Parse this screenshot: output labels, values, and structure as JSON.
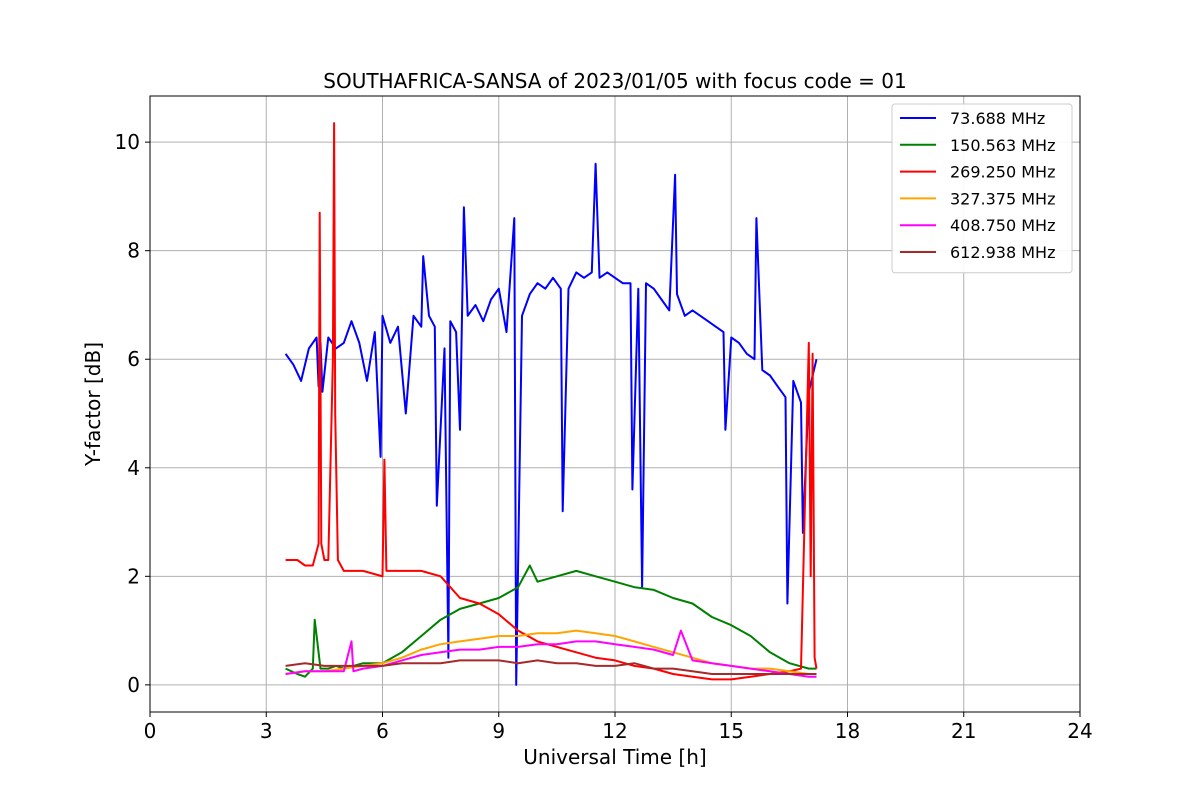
{
  "chart_data": {
    "type": "line",
    "title": "SOUTHAFRICA-SANSA of 2023/01/05 with focus code = 01",
    "xlabel": "Universal Time [h]",
    "ylabel": "Y-factor [dB]",
    "xlim": [
      0,
      24
    ],
    "ylim": [
      -0.5,
      10.85
    ],
    "xticks": [
      0,
      3,
      6,
      9,
      12,
      15,
      18,
      21,
      24
    ],
    "yticks": [
      0,
      2,
      4,
      6,
      8,
      10
    ],
    "grid": true,
    "legend_position": "top-right",
    "series": [
      {
        "name": " 73.688 MHz",
        "color": "#0000ff",
        "x": [
          3.5,
          3.7,
          3.9,
          4.1,
          4.3,
          4.35,
          4.4,
          4.45,
          4.6,
          4.8,
          5.0,
          5.2,
          5.4,
          5.6,
          5.8,
          5.95,
          6.0,
          6.2,
          6.4,
          6.6,
          6.8,
          7.0,
          7.05,
          7.2,
          7.35,
          7.4,
          7.6,
          7.7,
          7.75,
          7.9,
          8.0,
          8.1,
          8.2,
          8.4,
          8.6,
          8.8,
          9.0,
          9.2,
          9.4,
          9.45,
          9.6,
          9.8,
          10.0,
          10.2,
          10.4,
          10.6,
          10.65,
          10.8,
          11.0,
          11.2,
          11.4,
          11.5,
          11.6,
          11.8,
          12.0,
          12.2,
          12.4,
          12.45,
          12.6,
          12.7,
          12.8,
          13.0,
          13.2,
          13.4,
          13.55,
          13.6,
          13.8,
          14.0,
          14.2,
          14.4,
          14.6,
          14.8,
          14.85,
          15.0,
          15.2,
          15.4,
          15.6,
          15.65,
          15.8,
          16.0,
          16.2,
          16.4,
          16.45,
          16.6,
          16.8,
          16.85,
          17.0,
          17.2
        ],
        "values": [
          6.1,
          5.9,
          5.6,
          6.2,
          6.4,
          5.5,
          6.3,
          5.4,
          6.4,
          6.2,
          6.3,
          6.7,
          6.3,
          5.6,
          6.5,
          4.2,
          6.8,
          6.3,
          6.6,
          5.0,
          6.8,
          6.6,
          7.9,
          6.8,
          6.6,
          3.3,
          6.2,
          0.5,
          6.7,
          6.5,
          4.7,
          8.8,
          6.8,
          7.0,
          6.7,
          7.1,
          7.3,
          6.5,
          8.6,
          0.0,
          6.8,
          7.2,
          7.4,
          7.3,
          7.5,
          7.3,
          3.2,
          7.3,
          7.6,
          7.5,
          7.6,
          9.6,
          7.5,
          7.6,
          7.5,
          7.4,
          7.4,
          3.6,
          7.3,
          1.8,
          7.4,
          7.3,
          7.1,
          6.9,
          9.4,
          7.2,
          6.8,
          6.9,
          6.8,
          6.7,
          6.6,
          6.5,
          4.7,
          6.4,
          6.3,
          6.1,
          6.0,
          8.6,
          5.8,
          5.7,
          5.5,
          5.3,
          1.5,
          5.6,
          5.2,
          2.8,
          5.4,
          6.0
        ]
      },
      {
        "name": "150.563 MHz",
        "color": "#008000",
        "x": [
          3.5,
          3.8,
          4.0,
          4.2,
          4.25,
          4.4,
          4.6,
          4.8,
          5.0,
          5.5,
          6.0,
          6.5,
          7.0,
          7.5,
          8.0,
          8.5,
          9.0,
          9.5,
          9.8,
          10.0,
          10.5,
          11.0,
          11.5,
          12.0,
          12.5,
          13.0,
          13.5,
          14.0,
          14.5,
          15.0,
          15.5,
          16.0,
          16.5,
          17.0,
          17.2
        ],
        "values": [
          0.3,
          0.2,
          0.15,
          0.3,
          1.2,
          0.3,
          0.3,
          0.35,
          0.3,
          0.4,
          0.4,
          0.6,
          0.9,
          1.2,
          1.4,
          1.5,
          1.6,
          1.8,
          2.2,
          1.9,
          2.0,
          2.1,
          2.0,
          1.9,
          1.8,
          1.75,
          1.6,
          1.5,
          1.25,
          1.1,
          0.9,
          0.6,
          0.4,
          0.3,
          0.3
        ]
      },
      {
        "name": "269.250 MHz",
        "color": "#ff0000",
        "x": [
          3.5,
          3.8,
          4.0,
          4.2,
          4.35,
          4.38,
          4.42,
          4.5,
          4.6,
          4.72,
          4.75,
          4.78,
          4.85,
          5.0,
          5.5,
          6.0,
          6.05,
          6.1,
          6.5,
          7.0,
          7.5,
          8.0,
          8.5,
          9.0,
          9.5,
          10.0,
          10.5,
          11.0,
          11.5,
          12.0,
          12.5,
          13.0,
          13.5,
          14.0,
          14.5,
          15.0,
          15.5,
          16.0,
          16.5,
          16.8,
          17.0,
          17.05,
          17.1,
          17.15,
          17.2
        ],
        "values": [
          2.3,
          2.3,
          2.2,
          2.2,
          2.6,
          8.7,
          2.6,
          2.3,
          2.3,
          6.0,
          10.35,
          5.0,
          2.3,
          2.1,
          2.1,
          2.0,
          4.15,
          2.1,
          2.1,
          2.1,
          2.0,
          1.6,
          1.5,
          1.3,
          1.0,
          0.8,
          0.7,
          0.6,
          0.5,
          0.45,
          0.35,
          0.3,
          0.2,
          0.15,
          0.1,
          0.1,
          0.15,
          0.2,
          0.25,
          0.3,
          6.3,
          2.0,
          6.1,
          0.5,
          0.3
        ]
      },
      {
        "name": "327.375 MHz",
        "color": "#ffa500",
        "x": [
          3.5,
          4.0,
          4.5,
          5.0,
          5.5,
          6.0,
          6.5,
          7.0,
          7.5,
          8.0,
          8.5,
          9.0,
          9.5,
          10.0,
          10.5,
          11.0,
          11.5,
          12.0,
          12.5,
          13.0,
          13.5,
          14.0,
          14.5,
          15.0,
          15.5,
          16.0,
          16.5,
          17.0,
          17.2
        ],
        "values": [
          0.2,
          0.25,
          0.25,
          0.3,
          0.35,
          0.4,
          0.5,
          0.65,
          0.75,
          0.8,
          0.85,
          0.9,
          0.9,
          0.95,
          0.95,
          1.0,
          0.95,
          0.9,
          0.8,
          0.7,
          0.6,
          0.5,
          0.4,
          0.35,
          0.3,
          0.3,
          0.25,
          0.2,
          0.2
        ]
      },
      {
        "name": "408.750 MHz",
        "color": "#ff00ff",
        "x": [
          3.5,
          4.0,
          4.5,
          5.0,
          5.2,
          5.25,
          5.5,
          6.0,
          6.5,
          7.0,
          7.5,
          8.0,
          8.5,
          9.0,
          9.5,
          10.0,
          10.5,
          11.0,
          11.5,
          12.0,
          12.5,
          13.0,
          13.5,
          13.7,
          14.0,
          14.5,
          15.0,
          15.5,
          16.0,
          16.5,
          17.0,
          17.2
        ],
        "values": [
          0.2,
          0.25,
          0.25,
          0.25,
          0.8,
          0.25,
          0.3,
          0.35,
          0.45,
          0.55,
          0.6,
          0.65,
          0.65,
          0.7,
          0.7,
          0.75,
          0.75,
          0.8,
          0.8,
          0.75,
          0.7,
          0.65,
          0.55,
          1.0,
          0.45,
          0.4,
          0.35,
          0.3,
          0.25,
          0.2,
          0.15,
          0.15
        ]
      },
      {
        "name": "612.938 MHz",
        "color": "#a52a2a",
        "x": [
          3.5,
          4.0,
          4.5,
          5.0,
          5.5,
          6.0,
          6.5,
          7.0,
          7.5,
          8.0,
          8.5,
          9.0,
          9.5,
          10.0,
          10.5,
          11.0,
          11.5,
          12.0,
          12.5,
          13.0,
          13.5,
          14.0,
          14.5,
          15.0,
          15.5,
          16.0,
          16.5,
          17.0,
          17.2
        ],
        "values": [
          0.35,
          0.4,
          0.35,
          0.35,
          0.35,
          0.35,
          0.4,
          0.4,
          0.4,
          0.45,
          0.45,
          0.45,
          0.4,
          0.45,
          0.4,
          0.4,
          0.35,
          0.35,
          0.4,
          0.3,
          0.3,
          0.25,
          0.2,
          0.2,
          0.2,
          0.2,
          0.2,
          0.2,
          0.2
        ]
      }
    ]
  }
}
